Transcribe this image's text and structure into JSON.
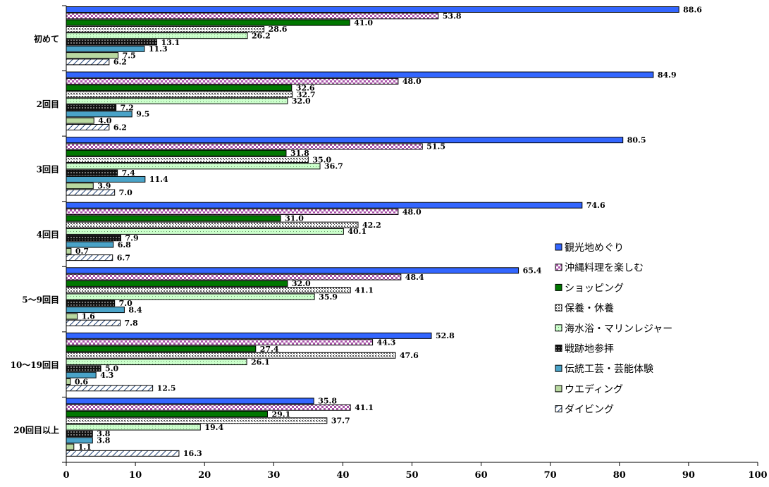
{
  "chart_data": {
    "type": "bar",
    "orientation": "horizontal",
    "categories": [
      "初めて",
      "2回目",
      "3回目",
      "4回目",
      "5～9回目",
      "10～19回目",
      "20回目以上"
    ],
    "xlim": [
      0,
      100
    ],
    "xticks": [
      0,
      10,
      20,
      30,
      40,
      50,
      60,
      70,
      80,
      90,
      100
    ],
    "grid": false,
    "legend_position": "right",
    "series": [
      {
        "name": "観光地めぐり",
        "color": "#3366ff",
        "pattern": "solid",
        "values": [
          88.6,
          84.9,
          80.5,
          74.6,
          65.4,
          52.8,
          35.8
        ]
      },
      {
        "name": "沖縄料理を楽しむ",
        "color": "#cc66cc",
        "pattern": "checker",
        "values": [
          53.8,
          48.0,
          51.5,
          48.0,
          48.4,
          44.3,
          41.1
        ]
      },
      {
        "name": "ショッピング",
        "color": "#007700",
        "pattern": "solid",
        "values": [
          41.0,
          32.6,
          31.8,
          31.0,
          32.0,
          27.4,
          29.1
        ]
      },
      {
        "name": "保養・休養",
        "color": "#888888",
        "pattern": "dots",
        "values": [
          28.6,
          32.7,
          35.0,
          42.2,
          41.1,
          47.6,
          37.7
        ]
      },
      {
        "name": "海水浴・マリンレジャー",
        "color": "#ccffcc",
        "pattern": "lightdots",
        "values": [
          26.2,
          32.0,
          36.7,
          40.1,
          35.9,
          26.1,
          19.4
        ]
      },
      {
        "name": "戦跡地参拝",
        "color": "#222222",
        "pattern": "darkcheck",
        "values": [
          13.1,
          7.2,
          7.4,
          7.9,
          7.0,
          5.0,
          3.8
        ]
      },
      {
        "name": "伝統工芸・芸能体験",
        "color": "#4aa3c8",
        "pattern": "solid",
        "values": [
          11.3,
          9.5,
          11.4,
          6.8,
          8.4,
          4.3,
          3.8
        ]
      },
      {
        "name": "ウエディング",
        "color": "#b8d8a0",
        "pattern": "solid",
        "values": [
          7.5,
          4.0,
          3.9,
          0.7,
          1.6,
          0.6,
          1.1
        ]
      },
      {
        "name": "ダイビング",
        "color": "#ffffff",
        "pattern": "diagonal",
        "values": [
          6.2,
          6.2,
          7.0,
          6.7,
          7.8,
          12.5,
          16.3
        ]
      }
    ]
  }
}
